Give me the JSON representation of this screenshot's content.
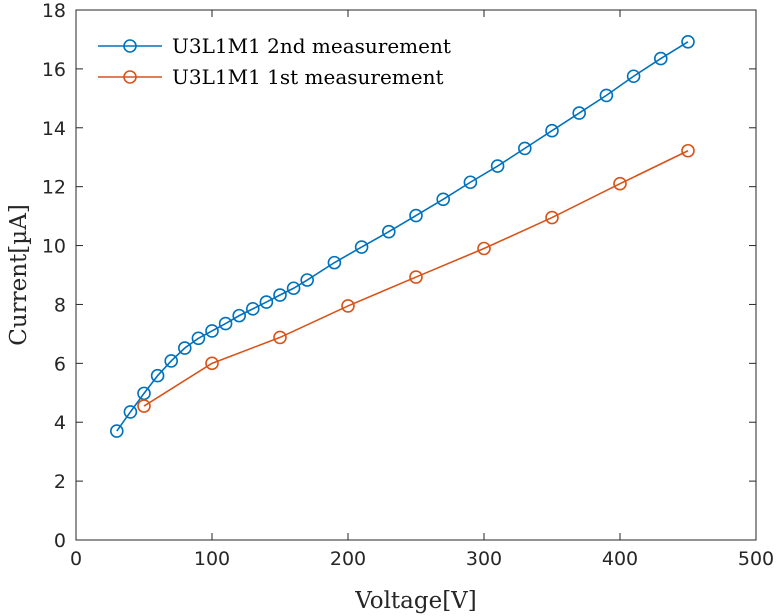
{
  "chart_data": {
    "type": "line",
    "xlabel": "Voltage[V]",
    "ylabel": "Current[µA]",
    "xlim": [
      0,
      500
    ],
    "ylim": [
      0,
      18
    ],
    "xticks": [
      0,
      100,
      200,
      300,
      400,
      500
    ],
    "yticks": [
      0,
      2,
      4,
      6,
      8,
      10,
      12,
      14,
      16,
      18
    ],
    "grid": false,
    "legend_position": "top-left",
    "marker": "circle",
    "series": [
      {
        "name": "U3L1M1 2nd measurement",
        "color": "#0072BD",
        "x": [
          30,
          40,
          50,
          60,
          70,
          80,
          90,
          100,
          110,
          120,
          130,
          140,
          150,
          160,
          170,
          190,
          210,
          230,
          250,
          270,
          290,
          310,
          330,
          350,
          370,
          390,
          410,
          430,
          450
        ],
        "y": [
          3.7,
          4.35,
          4.98,
          5.58,
          6.08,
          6.52,
          6.85,
          7.1,
          7.35,
          7.62,
          7.85,
          8.08,
          8.32,
          8.55,
          8.83,
          9.42,
          9.95,
          10.47,
          11.02,
          11.57,
          12.15,
          12.7,
          13.3,
          13.9,
          14.5,
          15.1,
          15.75,
          16.35,
          16.92
        ]
      },
      {
        "name": "U3L1M1 1st measurement",
        "color": "#D95319",
        "x": [
          50,
          100,
          150,
          200,
          250,
          300,
          350,
          400,
          450
        ],
        "y": [
          4.55,
          6.0,
          6.88,
          7.95,
          8.93,
          9.9,
          10.95,
          12.1,
          13.22
        ]
      }
    ]
  }
}
